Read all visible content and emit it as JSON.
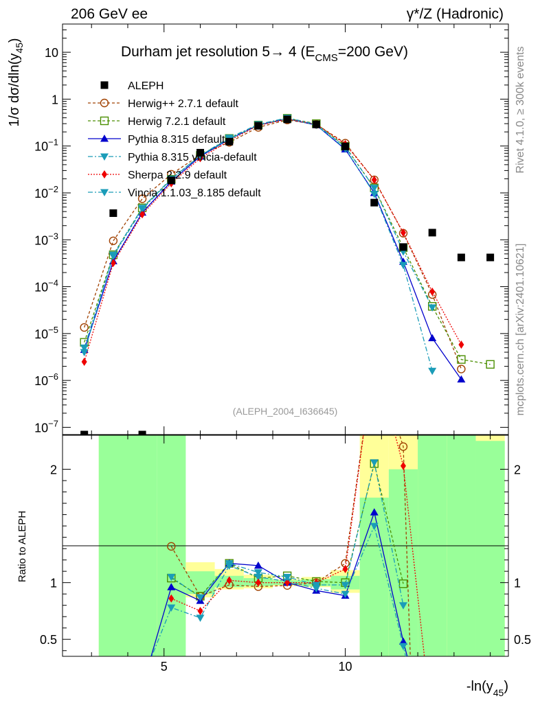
{
  "header": {
    "left": "206 GeV ee",
    "right": "γ*/Z (Hadronic)"
  },
  "side": {
    "rivet": "Rivet 4.1.0, ≥ 300k events",
    "mcplots": "mcplots.cern.ch [arXiv:2401.10621]"
  },
  "chart_data": {
    "type": "line",
    "title": "Durham jet resolution 5→ 4 (E_CMS=200 GeV)",
    "title_parts": {
      "pre": "Durham jet resolution 5",
      "arrow": "→",
      "mid": "  4 (E",
      "sub": "CMS",
      "post": "=200 GeV)"
    },
    "analysis_tag": "(ALEPH_2004_I636645)",
    "xlabel": "-ln(y_45)",
    "xlabel_parts": {
      "main": "-ln(y",
      "sub": "45",
      "close": ")"
    },
    "ylabel": "1/σ dσ/dln(y_45)",
    "ylabel_parts": {
      "main": "1/σ  dσ/dln(y",
      "sub": "45",
      "close": ")"
    },
    "ratio_ylabel": "Ratio to ALEPH",
    "xlim": [
      2.2,
      14.5
    ],
    "ylim": [
      7e-08,
      40
    ],
    "ratio_ylim": [
      0.35,
      2.3
    ],
    "x_ticks": [
      5,
      10
    ],
    "x_tick_labels": [
      "5",
      "10"
    ],
    "y_ticks": [
      1e-07,
      1e-06,
      1e-05,
      0.0001,
      0.001,
      0.01,
      0.1,
      1,
      10
    ],
    "y_tick_labels": [
      {
        "base": "10",
        "exp": "−7"
      },
      {
        "base": "10",
        "exp": "−6"
      },
      {
        "base": "10",
        "exp": "−5"
      },
      {
        "base": "10",
        "exp": "−4"
      },
      {
        "base": "10",
        "exp": "−3"
      },
      {
        "base": "10",
        "exp": "−2"
      },
      {
        "base": "10",
        "exp": "−1"
      },
      {
        "base": "1",
        "exp": ""
      },
      {
        "base": "10",
        "exp": ""
      }
    ],
    "ratio_ticks": [
      0.5,
      1,
      2
    ],
    "ratio_tick_labels": [
      "0.5",
      "1",
      "2"
    ],
    "data": {
      "name": "ALEPH",
      "x": [
        2.8,
        3.6,
        4.4,
        5.2,
        6.0,
        6.8,
        7.6,
        8.4,
        9.2,
        10.0,
        10.8,
        11.6,
        12.4,
        13.2,
        14.0
      ],
      "y": [
        7e-08,
        0.0037,
        7e-08,
        0.0185,
        0.072,
        0.124,
        0.27,
        0.37,
        0.29,
        0.098,
        0.0062,
        0.0007,
        0.00142,
        0.00042,
        0.00042
      ],
      "bands": [
        {
          "x0": 3.2,
          "x1": 4.8,
          "g": [
            0.3,
            2.4
          ],
          "y": [
            0.3,
            2.4
          ]
        },
        {
          "x0": 4.8,
          "x1": 5.6,
          "g": [
            0.3,
            2.4
          ],
          "y": [
            0.55,
            1.7
          ]
        },
        {
          "x0": 5.6,
          "x1": 6.4,
          "g": [
            0.9,
            1.1
          ],
          "y": [
            0.87,
            1.18
          ]
        },
        {
          "x0": 6.4,
          "x1": 7.2,
          "g": [
            0.96,
            1.06
          ],
          "y": [
            0.94,
            1.12
          ]
        },
        {
          "x0": 7.2,
          "x1": 8.0,
          "g": [
            0.97,
            1.04
          ],
          "y": [
            0.95,
            1.07
          ]
        },
        {
          "x0": 8.0,
          "x1": 8.8,
          "g": [
            0.98,
            1.02
          ],
          "y": [
            0.97,
            1.03
          ]
        },
        {
          "x0": 8.8,
          "x1": 9.6,
          "g": [
            0.97,
            1.03
          ],
          "y": [
            0.96,
            1.05
          ]
        },
        {
          "x0": 9.6,
          "x1": 10.4,
          "g": [
            0.94,
            1.06
          ],
          "y": [
            0.91,
            1.11
          ]
        },
        {
          "x0": 10.4,
          "x1": 11.2,
          "g": [
            0.3,
            1.75
          ],
          "y": [
            0.36,
            2.4
          ]
        },
        {
          "x0": 11.2,
          "x1": 12.0,
          "g": [
            0.3,
            2.0
          ],
          "y": [
            0.3,
            2.4
          ]
        },
        {
          "x0": 12.0,
          "x1": 12.8,
          "g": [
            0.3,
            2.4
          ],
          "y": [
            0.3,
            2.4
          ]
        },
        {
          "x0": 12.8,
          "x1": 13.6,
          "g": [
            0.3,
            2.4
          ],
          "y": [
            0.3,
            2.4
          ]
        },
        {
          "x0": 13.6,
          "x1": 14.4,
          "g": [
            0.3,
            2.25
          ],
          "y": [
            0.3,
            2.4
          ]
        }
      ]
    },
    "series": [
      {
        "name": "Herwig++ 2.7.1 default",
        "color": "#a04000",
        "dash": "4,3",
        "marker": "circle-open",
        "x": [
          2.8,
          3.6,
          4.4,
          5.2,
          6.0,
          6.8,
          7.6,
          8.4,
          9.2,
          10.0,
          10.8,
          11.6,
          12.4,
          13.2
        ],
        "y": [
          1.35e-05,
          0.00095,
          0.0075,
          0.025,
          0.065,
          0.12,
          0.25,
          0.36,
          0.29,
          0.115,
          0.019,
          0.00138,
          6.8e-05,
          1.75e-06
        ],
        "ratio_x": [
          5.2,
          6.0,
          6.8,
          7.6,
          8.4,
          9.2,
          10.0,
          10.8,
          11.6,
          11.8
        ],
        "ratio_y": [
          1.32,
          0.88,
          0.98,
          0.965,
          0.975,
          1.0,
          1.17,
          3.0,
          2.2,
          0.3
        ]
      },
      {
        "name": "Herwig 7.2.1 default",
        "color": "#4a8e00",
        "dash": "4,3",
        "marker": "square-open",
        "x": [
          2.8,
          3.6,
          4.4,
          5.2,
          6.0,
          6.8,
          7.6,
          8.4,
          9.2,
          10.0,
          10.8,
          11.6,
          12.4,
          13.2,
          14.0
        ],
        "y": [
          6.5e-06,
          0.00048,
          0.0048,
          0.0195,
          0.063,
          0.145,
          0.28,
          0.39,
          0.3,
          0.098,
          0.0128,
          0.00068,
          3.8e-05,
          2.8e-06,
          2.2e-06
        ],
        "ratio_x": [
          5.2,
          6.0,
          6.8,
          7.6,
          8.4,
          9.2,
          10.0,
          10.8,
          11.6
        ],
        "ratio_y": [
          1.04,
          0.88,
          1.17,
          1.04,
          1.06,
          1.01,
          1.0,
          2.05,
          0.99
        ]
      },
      {
        "name": "Pythia 8.315 default",
        "color": "#0000cc",
        "dash": "",
        "marker": "triangle-up",
        "x": [
          2.8,
          3.6,
          4.4,
          5.2,
          6.0,
          6.8,
          7.6,
          8.4,
          9.2,
          10.0,
          10.8,
          11.6,
          12.4,
          13.2
        ],
        "y": [
          4.5e-06,
          0.00035,
          0.0038,
          0.0175,
          0.06,
          0.14,
          0.28,
          0.38,
          0.28,
          0.085,
          0.01,
          0.00034,
          8e-06,
          1.05e-06
        ],
        "ratio_x": [
          4.6,
          5.2,
          6.0,
          6.8,
          7.6,
          8.4,
          9.2,
          10.0,
          10.8,
          11.6,
          11.75
        ],
        "ratio_y": [
          0.3,
          0.96,
          0.84,
          1.17,
          1.15,
          1.0,
          0.93,
          0.885,
          1.62,
          0.48,
          0.3
        ]
      },
      {
        "name": "Pythia 8.315 vincia-default",
        "color": "#1a9cb8",
        "dash": "7,3,2,3",
        "marker": "triangle-down",
        "x": [
          2.8,
          3.6,
          4.4,
          5.2,
          6.0,
          6.8,
          7.6,
          8.4,
          9.2,
          10.0,
          10.8,
          11.6,
          12.4
        ],
        "y": [
          5e-06,
          0.00045,
          0.0045,
          0.0195,
          0.063,
          0.14,
          0.28,
          0.38,
          0.28,
          0.088,
          0.0095,
          0.00029,
          1.6e-06
        ],
        "ratio_x": [
          4.6,
          5.2,
          6.0,
          6.8,
          7.6,
          8.4,
          9.2,
          10.0,
          10.8,
          11.6,
          11.7
        ],
        "ratio_y": [
          0.3,
          0.78,
          0.69,
          1.15,
          1.05,
          1.01,
          0.95,
          0.9,
          1.5,
          0.44,
          0.3
        ]
      },
      {
        "name": "Sherpa 2.2.9 default",
        "color": "#ee0000",
        "dash": "2,2",
        "marker": "diamond",
        "x": [
          2.8,
          3.6,
          4.4,
          5.2,
          6.0,
          6.8,
          7.6,
          8.4,
          9.2,
          10.0,
          10.8,
          11.6,
          12.4,
          13.2
        ],
        "y": [
          2.5e-06,
          0.00032,
          0.0035,
          0.016,
          0.055,
          0.13,
          0.275,
          0.375,
          0.29,
          0.11,
          0.019,
          0.00142,
          7.8e-05,
          5.8e-06
        ],
        "ratio_x": [
          5.2,
          6.0,
          6.8,
          7.6,
          8.4,
          9.2,
          10.0,
          10.8,
          11.6,
          12.2
        ],
        "ratio_y": [
          0.86,
          0.75,
          1.02,
          1.0,
          1.0,
          1.0,
          1.12,
          3.0,
          2.03,
          0.3
        ]
      },
      {
        "name": "Vincia 1.1.03_8.185 default",
        "color": "#1a9cb8",
        "dash": "7,3,2,3",
        "marker": "triangle-down",
        "x": [
          2.8,
          3.6,
          4.4,
          5.2,
          6.0,
          6.8,
          7.6,
          8.4,
          9.2,
          10.0,
          10.8,
          11.6,
          12.4
        ],
        "y": [
          4e-06,
          0.00048,
          0.0048,
          0.02,
          0.063,
          0.15,
          0.29,
          0.4,
          0.29,
          0.095,
          0.0128,
          0.00056,
          3.6e-05
        ],
        "ratio_x": [
          5.2,
          6.0,
          6.8,
          7.6,
          8.4,
          9.2,
          10.0,
          10.8,
          11.6
        ],
        "ratio_y": [
          1.05,
          0.87,
          1.17,
          1.09,
          1.05,
          0.98,
          0.98,
          2.06,
          0.8
        ]
      }
    ]
  }
}
